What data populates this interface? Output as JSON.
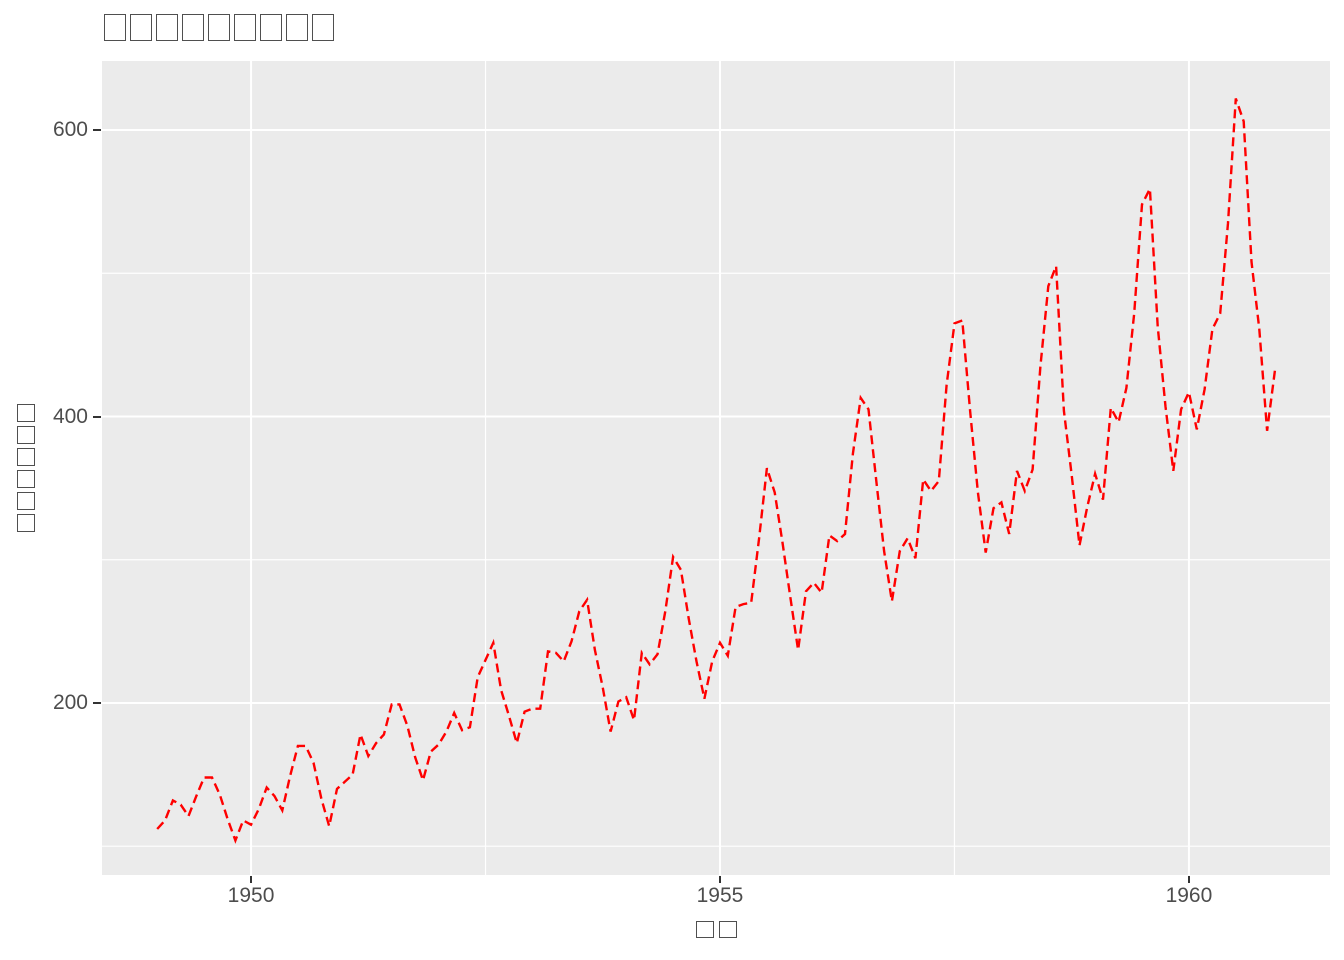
{
  "colors": {
    "page_background": "#FFFFFF",
    "panel_background": "#EBEBEB",
    "grid_major": "#FFFFFF",
    "grid_minor": "#FFFFFF",
    "line": "#FF0000",
    "tick_label": "#4D4D4D",
    "tick_mark": "#333333",
    "missing_glyph_border": "#4F4F4F"
  },
  "chart_data": {
    "type": "line",
    "title": {
      "rendered_as": "missing-glyph-boxes",
      "glyphs": "□□□□□□□□□",
      "glyph_count": 9
    },
    "x_axis": {
      "label_rendered_as": "missing-glyph-boxes",
      "label_glyphs": "□□",
      "label_glyph_count": 2,
      "tick_labels": [
        "1950",
        "1955",
        "1960"
      ],
      "tick_values": [
        1950,
        1955,
        1960
      ],
      "minor_tick_values": [
        1952.5,
        1957.5
      ],
      "domain": [
        1948.411,
        1961.504
      ]
    },
    "y_axis": {
      "label_rendered_as": "missing-glyph-boxes",
      "label_glyphs": "□□□□□□",
      "label_glyph_count": 6,
      "tick_labels": [
        "200",
        "400",
        "600"
      ],
      "tick_values": [
        200,
        400,
        600
      ],
      "minor_tick_values": [
        100,
        300,
        500
      ],
      "domain": [
        79.9,
        648.2
      ]
    },
    "grid": true,
    "legend": "none",
    "line_style": {
      "color": "#FF0000",
      "dash": [
        9,
        5
      ],
      "width": 2.4
    },
    "series": [
      {
        "name": "red-dashed-line",
        "start_x": 1949,
        "points_per_x_unit": 12,
        "values": [
          112,
          118,
          132,
          129,
          121,
          135,
          148,
          148,
          136,
          119,
          104,
          118,
          115,
          126,
          141,
          135,
          125,
          149,
          170,
          170,
          158,
          133,
          114,
          140,
          145,
          150,
          178,
          163,
          172,
          178,
          199,
          199,
          184,
          162,
          146,
          166,
          171,
          180,
          193,
          181,
          183,
          218,
          230,
          242,
          209,
          191,
          172,
          194,
          196,
          196,
          236,
          235,
          229,
          243,
          264,
          272,
          237,
          211,
          180,
          201,
          204,
          188,
          235,
          227,
          234,
          264,
          302,
          293,
          259,
          229,
          203,
          229,
          242,
          233,
          267,
          269,
          270,
          315,
          364,
          347,
          312,
          274,
          237,
          278,
          284,
          277,
          317,
          313,
          318,
          374,
          413,
          405,
          355,
          306,
          271,
          306,
          315,
          301,
          356,
          348,
          355,
          422,
          465,
          467,
          404,
          347,
          305,
          336,
          340,
          318,
          362,
          348,
          363,
          435,
          491,
          505,
          404,
          359,
          310,
          337,
          360,
          342,
          406,
          396,
          420,
          472,
          548,
          559,
          463,
          407,
          362,
          405,
          417,
          391,
          419,
          461,
          472,
          535,
          622,
          606,
          508,
          461,
          390,
          432
        ]
      }
    ]
  }
}
